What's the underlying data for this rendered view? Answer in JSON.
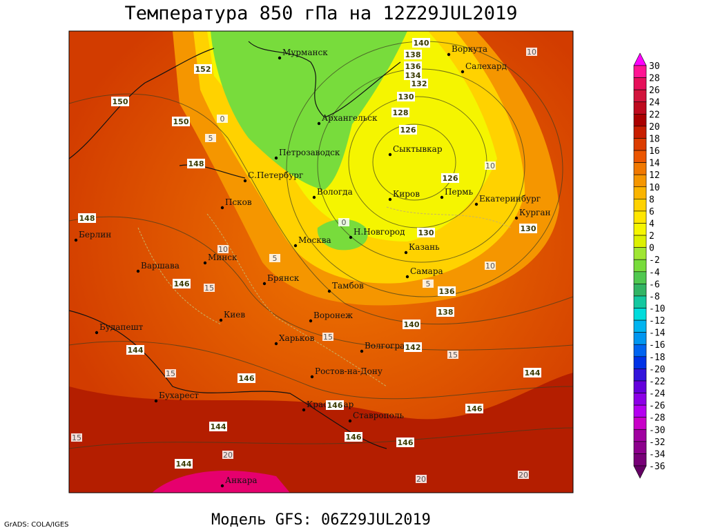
{
  "header": {
    "title": "Температура 850 гПа на 12Z29JUL2019"
  },
  "footer": {
    "model": "Модель GFS: 06Z29JUL2019",
    "credit": "GrADS: COLA/IGES"
  },
  "map": {
    "cities": [
      "Мурманск",
      "Воркута",
      "Салехард",
      "Архангельск",
      "Сыктывкар",
      "Петрозаводск",
      "С.Петербург",
      "Вологда",
      "Киров",
      "Пермь",
      "Екатеринбург",
      "Псков",
      "Курган",
      "Н.Новгород",
      "Москва",
      "Казань",
      "Минск",
      "Самара",
      "Брянск",
      "Тамбов",
      "Варшава",
      "Берлин",
      "Воронеж",
      "Киев",
      "Будапешт",
      "Харьков",
      "Волгоград",
      "Ростов-на-Дону",
      "Бухарест",
      "Краснодар",
      "Ставрополь",
      "Анкара"
    ],
    "contour_labels": [
      140,
      138,
      136,
      134,
      132,
      130,
      128,
      126,
      126,
      130,
      130,
      136,
      138,
      140,
      142,
      144,
      146,
      148,
      148,
      150,
      150,
      152,
      146,
      144,
      146,
      144,
      144,
      146,
      146,
      146
    ],
    "isotherm_labels": [
      10,
      10,
      10,
      10,
      15,
      15,
      15,
      15,
      15,
      20,
      20,
      20,
      5,
      5,
      5,
      0,
      0
    ]
  },
  "colorbar": {
    "labels": [
      30,
      28,
      26,
      24,
      22,
      20,
      18,
      16,
      14,
      12,
      10,
      8,
      6,
      4,
      2,
      0,
      -2,
      -4,
      -6,
      -8,
      -10,
      -12,
      -14,
      -16,
      -18,
      -20,
      -22,
      -24,
      -26,
      -28,
      -30,
      -32,
      -34,
      -36
    ],
    "colors": [
      "#ff00ff",
      "#ff1493",
      "#e60f5a",
      "#d2143c",
      "#be0a1e",
      "#aa0000",
      "#c81e00",
      "#dc3c00",
      "#eb5500",
      "#f07800",
      "#f59600",
      "#fab400",
      "#ffd200",
      "#ffe600",
      "#f5f500",
      "#dcf000",
      "#a0e632",
      "#78dc3c",
      "#50c850",
      "#32b464",
      "#14c8a0",
      "#00dcdc",
      "#00b4f0",
      "#0096f0",
      "#0064f0",
      "#0032e6",
      "#3214dc",
      "#6400dc",
      "#8c00e6",
      "#b400f0",
      "#c800c8",
      "#a000a0",
      "#8c008c",
      "#780078",
      "#640064"
    ]
  }
}
